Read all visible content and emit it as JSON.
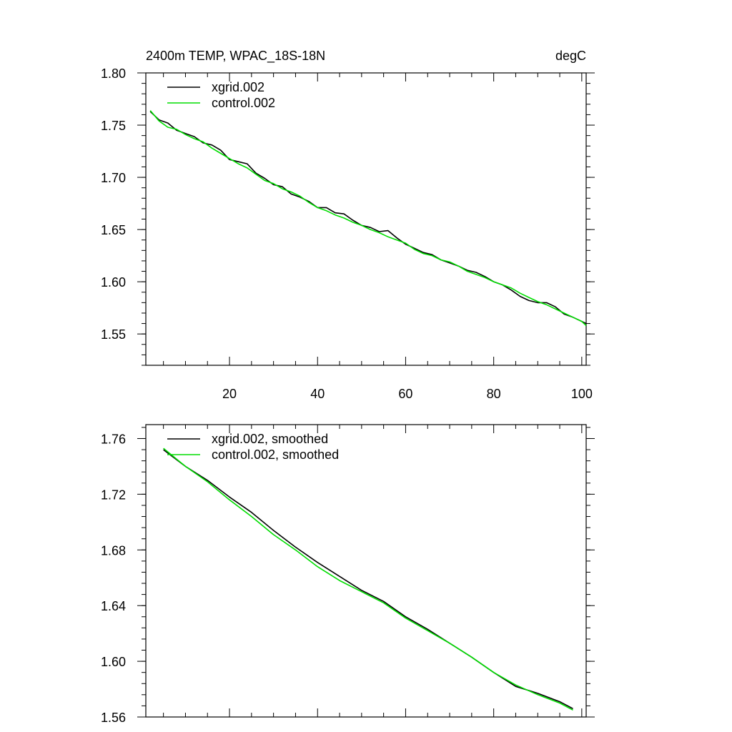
{
  "figure": {
    "title_left": "2400m TEMP, WPAC_18S-18N",
    "title_right": "degC"
  },
  "colors": {
    "xgrid": "#000000",
    "control": "#00dd00",
    "axis": "#000000"
  },
  "chart_data": [
    {
      "type": "line",
      "title": "2400m TEMP, WPAC_18S-18N",
      "units": "degC",
      "xlabel": "",
      "ylabel": "",
      "xlim": [
        1,
        101
      ],
      "ylim": [
        1.52,
        1.8
      ],
      "xticks": [
        20,
        40,
        60,
        80,
        100
      ],
      "yticks": [
        1.55,
        1.6,
        1.65,
        1.7,
        1.75,
        1.8
      ],
      "ytick_labels": [
        "1.55",
        "1.60",
        "1.65",
        "1.70",
        "1.75",
        "1.80"
      ],
      "grid": false,
      "legend": "top-left",
      "x": [
        2,
        4,
        6,
        8,
        10,
        12,
        14,
        16,
        18,
        20,
        22,
        24,
        26,
        28,
        30,
        32,
        34,
        36,
        38,
        40,
        42,
        44,
        46,
        48,
        50,
        52,
        54,
        56,
        58,
        60,
        62,
        64,
        66,
        68,
        70,
        72,
        74,
        76,
        78,
        80,
        82,
        84,
        86,
        88,
        90,
        92,
        94,
        96,
        98,
        100,
        101
      ],
      "series": [
        {
          "name": "xgrid.002",
          "values": [
            1.763,
            1.755,
            1.752,
            1.745,
            1.742,
            1.739,
            1.733,
            1.731,
            1.726,
            1.717,
            1.715,
            1.713,
            1.704,
            1.699,
            1.693,
            1.691,
            1.684,
            1.681,
            1.677,
            1.671,
            1.671,
            1.666,
            1.665,
            1.659,
            1.654,
            1.652,
            1.648,
            1.649,
            1.642,
            1.636,
            1.632,
            1.628,
            1.626,
            1.621,
            1.618,
            1.615,
            1.611,
            1.609,
            1.605,
            1.6,
            1.597,
            1.592,
            1.586,
            1.582,
            1.58,
            1.58,
            1.576,
            1.569,
            1.566,
            1.562,
            1.56
          ]
        },
        {
          "name": "control.002",
          "values": [
            1.764,
            1.754,
            1.748,
            1.746,
            1.741,
            1.737,
            1.734,
            1.728,
            1.723,
            1.718,
            1.713,
            1.709,
            1.703,
            1.697,
            1.694,
            1.689,
            1.686,
            1.682,
            1.676,
            1.671,
            1.668,
            1.664,
            1.661,
            1.657,
            1.654,
            1.65,
            1.647,
            1.643,
            1.64,
            1.637,
            1.631,
            1.627,
            1.625,
            1.621,
            1.619,
            1.615,
            1.61,
            1.607,
            1.604,
            1.6,
            1.597,
            1.594,
            1.589,
            1.585,
            1.581,
            1.578,
            1.574,
            1.57,
            1.566,
            1.562,
            1.558
          ]
        }
      ]
    },
    {
      "type": "line",
      "title": "",
      "xlabel": "",
      "ylabel": "",
      "xlim": [
        1,
        101
      ],
      "ylim": [
        1.56,
        1.77
      ],
      "xticks": [
        20,
        40,
        60,
        80,
        100
      ],
      "yticks": [
        1.56,
        1.6,
        1.64,
        1.68,
        1.72,
        1.76
      ],
      "ytick_labels": [
        "1.56",
        "1.60",
        "1.64",
        "1.68",
        "1.72",
        "1.76"
      ],
      "grid": false,
      "legend": "top-left",
      "x": [
        5,
        10,
        15,
        20,
        25,
        30,
        35,
        40,
        45,
        50,
        55,
        60,
        65,
        70,
        75,
        80,
        85,
        90,
        95,
        98
      ],
      "series": [
        {
          "name": "xgrid.002, smoothed",
          "values": [
            1.752,
            1.74,
            1.73,
            1.718,
            1.707,
            1.694,
            1.682,
            1.671,
            1.661,
            1.651,
            1.643,
            1.632,
            1.623,
            1.613,
            1.603,
            1.592,
            1.582,
            1.577,
            1.571,
            1.566
          ]
        },
        {
          "name": "control.002, smoothed",
          "values": [
            1.753,
            1.74,
            1.729,
            1.716,
            1.704,
            1.691,
            1.68,
            1.668,
            1.658,
            1.65,
            1.642,
            1.631,
            1.622,
            1.613,
            1.603,
            1.592,
            1.583,
            1.576,
            1.57,
            1.565
          ]
        }
      ]
    }
  ]
}
